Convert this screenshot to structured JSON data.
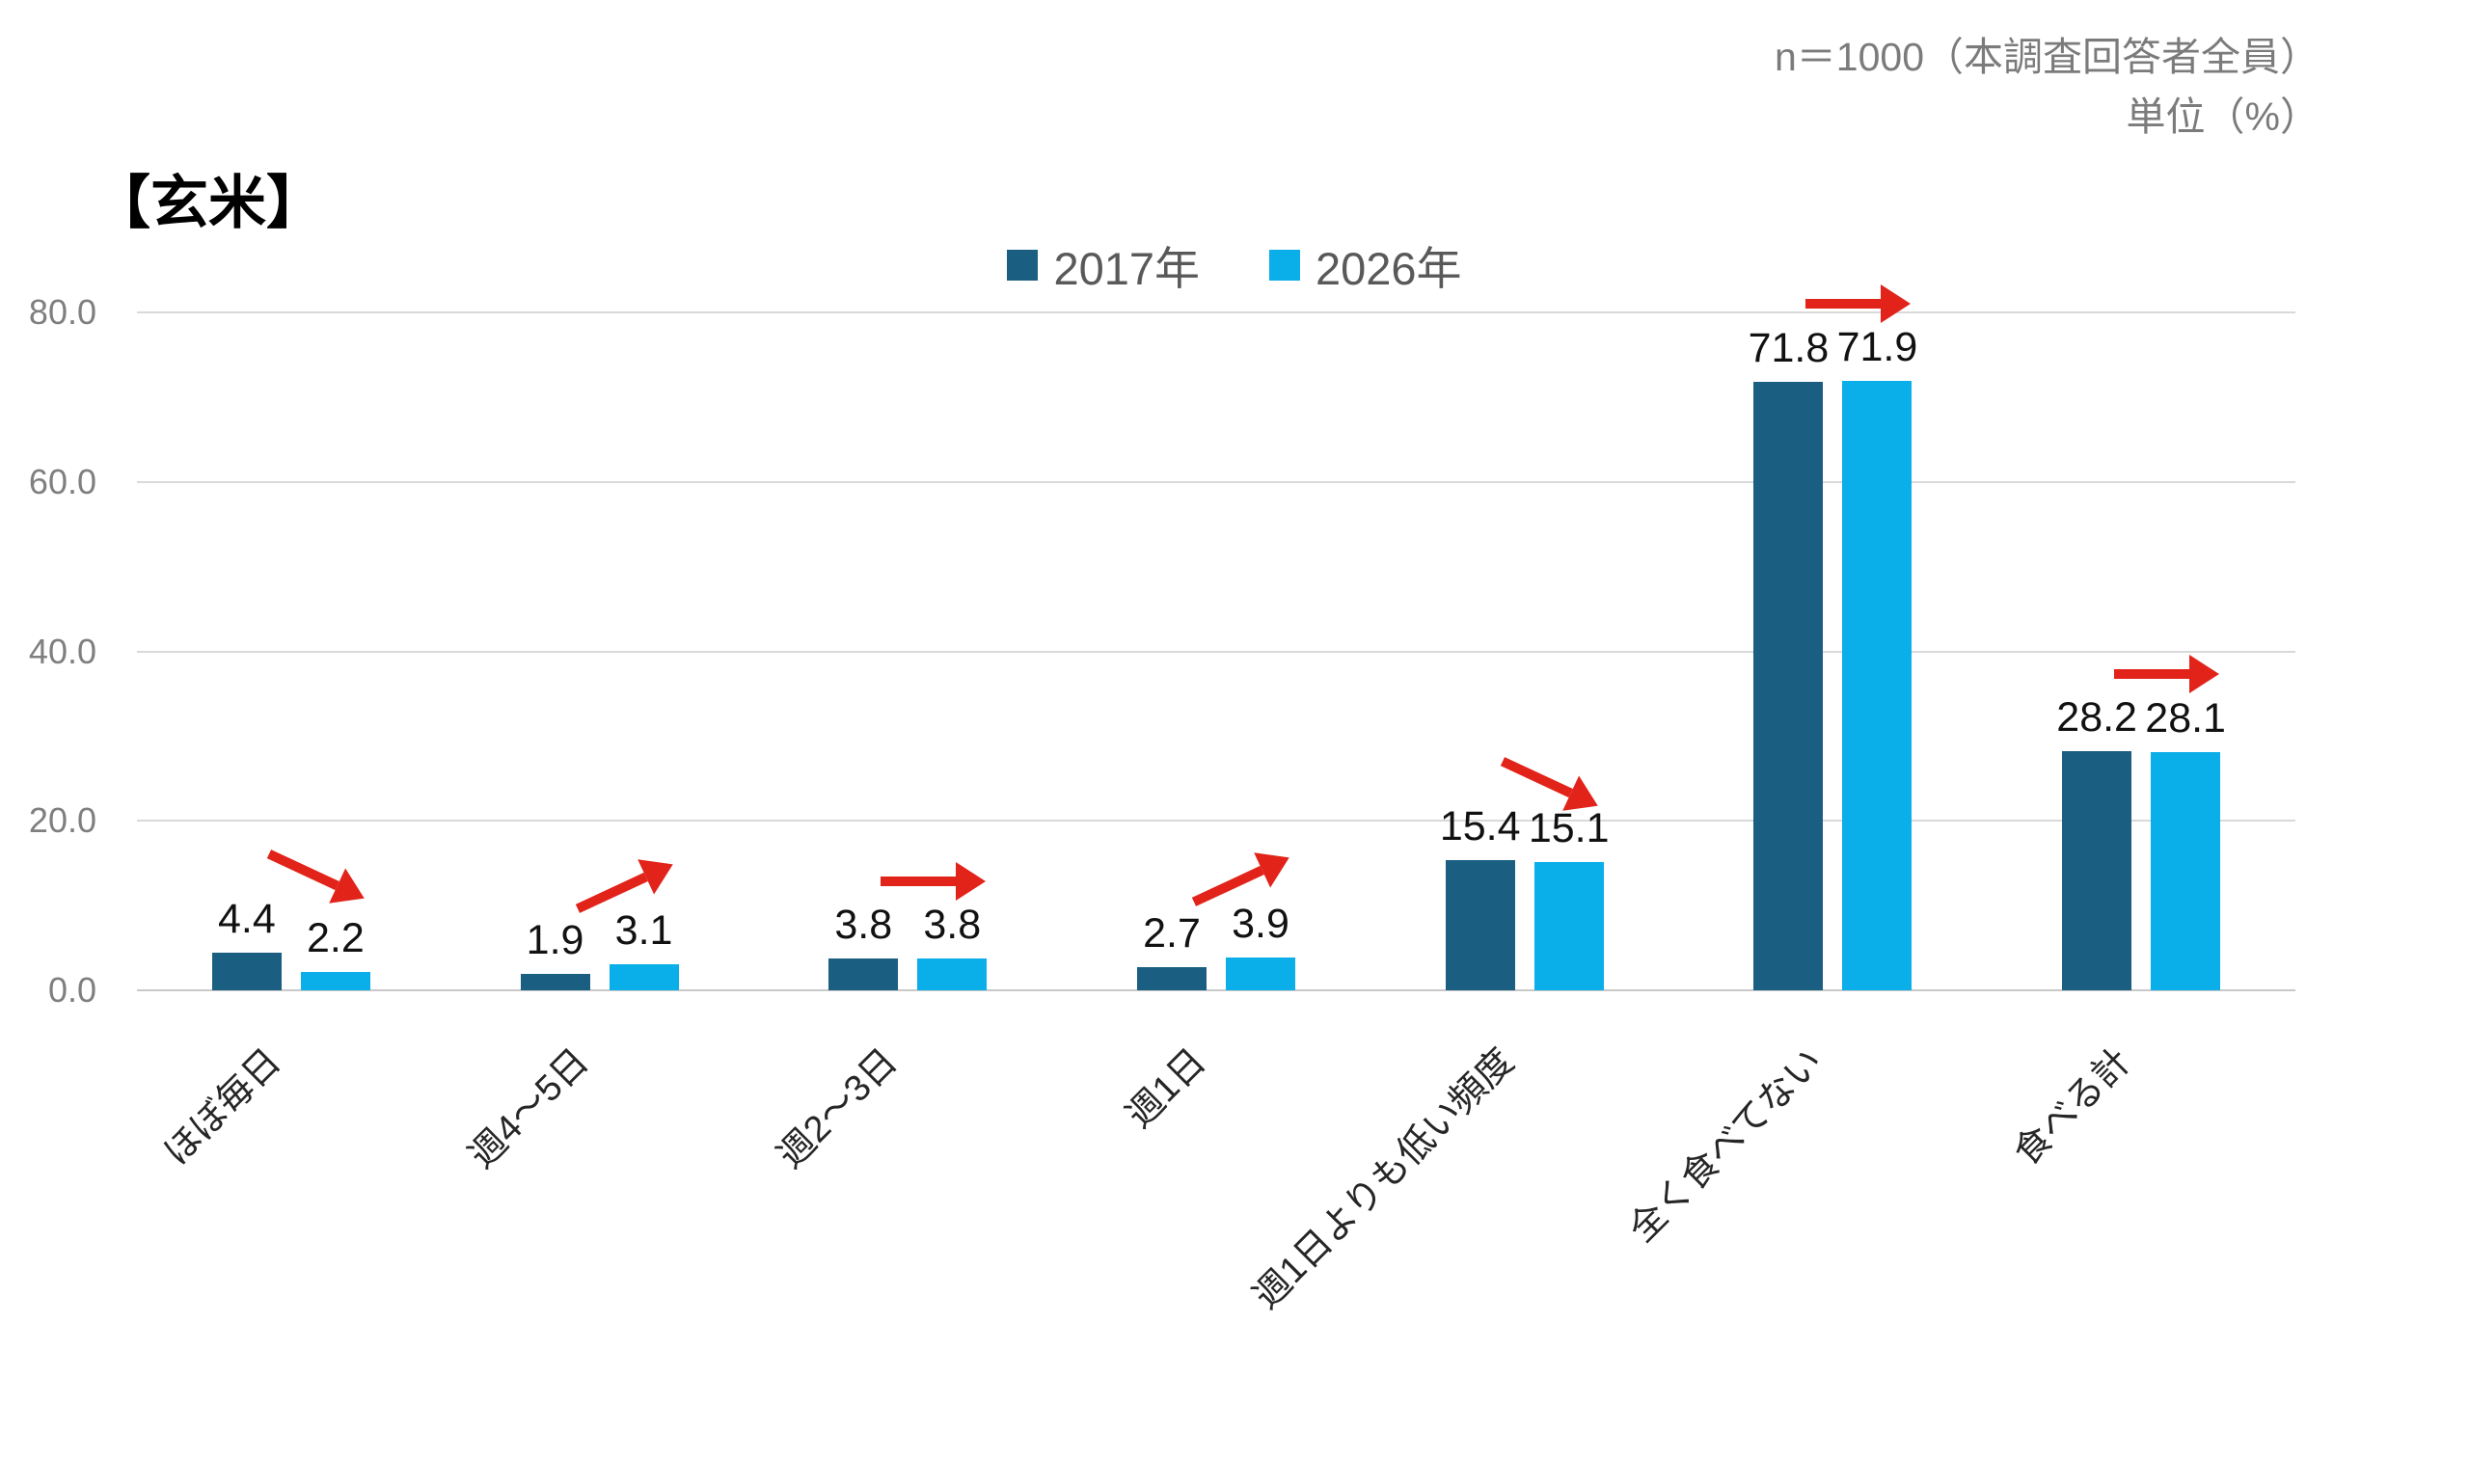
{
  "header": {
    "note_line1": "n＝1000（本調査回答者全員）",
    "note_line2": "単位（%）",
    "title": "【玄米】"
  },
  "chart_data": {
    "type": "bar",
    "title": "【玄米】",
    "unit": "%",
    "sample_note": "n＝1000（本調査回答者全員）",
    "categories": [
      "ほぼ毎日",
      "週4～5日",
      "週2～3日",
      "週1日",
      "週1日よりも低い頻度",
      "全く食べてない",
      "食べる計"
    ],
    "series": [
      {
        "name": "2017年",
        "color": "#1A5E82",
        "values": [
          4.4,
          1.9,
          3.8,
          2.7,
          15.4,
          71.8,
          28.2
        ]
      },
      {
        "name": "2026年",
        "color": "#0AAEE8",
        "values": [
          2.2,
          3.1,
          3.8,
          3.9,
          15.1,
          71.9,
          28.1
        ]
      }
    ],
    "trend_arrows": [
      "down",
      "up",
      "flat",
      "up",
      "down",
      "flat",
      "flat"
    ],
    "arrow_color": "#E2231A",
    "ylim": [
      0,
      80
    ],
    "yticks": [
      0,
      20,
      40,
      60,
      80
    ],
    "ytick_labels": [
      "0.0",
      "20.0",
      "40.0",
      "60.0",
      "80.0"
    ],
    "grid": true,
    "legend_position": "top-center",
    "colors": {
      "gridline": "#d9d9d9",
      "tick_text": "#7f7f7f",
      "note_text": "#7b7b7b",
      "legend_text": "#595959",
      "value_text": "#111111"
    }
  }
}
